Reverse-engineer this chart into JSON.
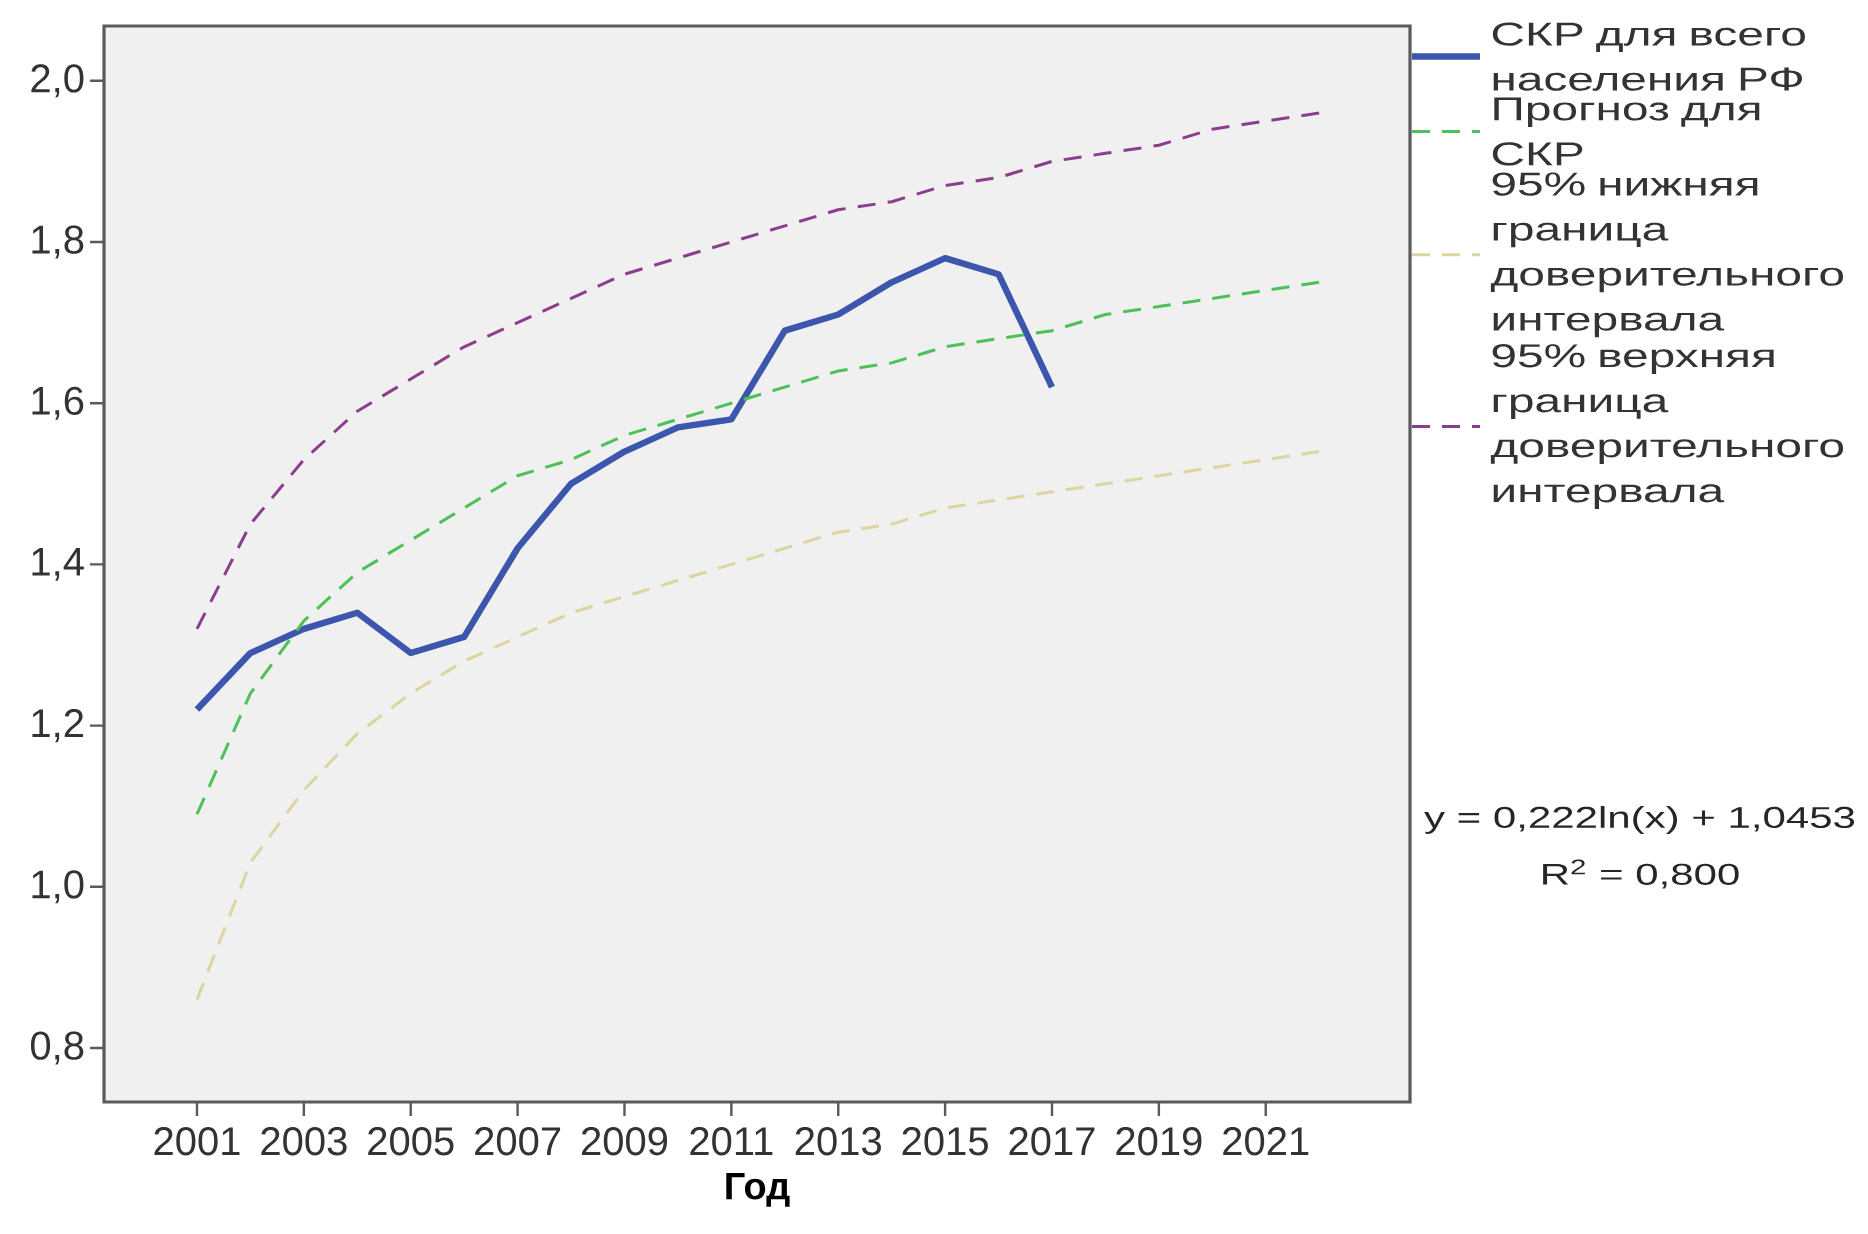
{
  "chart_data": {
    "type": "line",
    "xlabel": "Год",
    "x": [
      2001,
      2002,
      2003,
      2004,
      2005,
      2006,
      2007,
      2008,
      2009,
      2010,
      2011,
      2012,
      2013,
      2014,
      2015,
      2016,
      2017,
      2018,
      2019,
      2020,
      2021,
      2022
    ],
    "xlim": [
      1999.26,
      2023.7
    ],
    "xticks": [
      2001,
      2003,
      2005,
      2007,
      2009,
      2011,
      2013,
      2015,
      2017,
      2019,
      2021
    ],
    "ylim": [
      0.733,
      2.068
    ],
    "yticks": [
      {
        "value": 0.8,
        "label": "0,8"
      },
      {
        "value": 1.0,
        "label": "1,0"
      },
      {
        "value": 1.2,
        "label": "1,2"
      },
      {
        "value": 1.4,
        "label": "1,4"
      },
      {
        "value": 1.6,
        "label": "1,6"
      },
      {
        "value": 1.8,
        "label": "1,8"
      },
      {
        "value": 2.0,
        "label": "2,0"
      }
    ],
    "series": [
      {
        "name": "СКР для всего населения РФ",
        "color": "#3d56ad",
        "line_style": "solid",
        "x": [
          2001,
          2002,
          2003,
          2004,
          2005,
          2006,
          2007,
          2008,
          2009,
          2010,
          2011,
          2012,
          2013,
          2014,
          2015,
          2016,
          2017
        ],
        "values": [
          1.22,
          1.29,
          1.32,
          1.34,
          1.29,
          1.31,
          1.42,
          1.5,
          1.54,
          1.57,
          1.58,
          1.69,
          1.71,
          1.75,
          1.78,
          1.76,
          1.62
        ]
      },
      {
        "name": "Прогноз для СКР",
        "color": "#4cc157",
        "line_style": "dashed",
        "values": [
          1.09,
          1.24,
          1.33,
          1.39,
          1.43,
          1.47,
          1.51,
          1.53,
          1.56,
          1.58,
          1.6,
          1.62,
          1.64,
          1.65,
          1.67,
          1.68,
          1.69,
          1.71,
          1.72,
          1.73,
          1.74,
          1.75
        ]
      },
      {
        "name": "95% нижняя граница доверительного интервала",
        "color": "#ddd5a0",
        "line_style": "dashed",
        "values": [
          0.86,
          1.03,
          1.12,
          1.19,
          1.24,
          1.28,
          1.31,
          1.34,
          1.36,
          1.38,
          1.4,
          1.42,
          1.44,
          1.45,
          1.47,
          1.48,
          1.49,
          1.5,
          1.51,
          1.52,
          1.53,
          1.54
        ]
      },
      {
        "name": "95% верхняя граница доверительного интервала",
        "color": "#8c3d8c",
        "line_style": "dashed",
        "values": [
          1.32,
          1.45,
          1.53,
          1.59,
          1.63,
          1.67,
          1.7,
          1.73,
          1.76,
          1.78,
          1.8,
          1.82,
          1.84,
          1.85,
          1.87,
          1.88,
          1.9,
          1.91,
          1.92,
          1.94,
          1.95,
          1.96
        ]
      }
    ],
    "legend": "right",
    "annotations": [
      "y = 0,222ln(x) + 1,0453",
      "R$^{2}$ = 0,800"
    ]
  }
}
